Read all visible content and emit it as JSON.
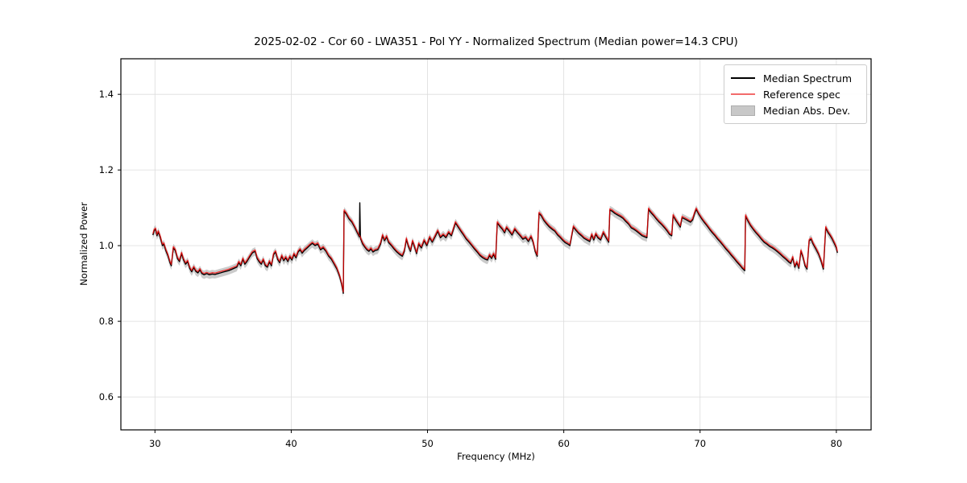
{
  "chart_data": {
    "type": "line",
    "title": "2025-02-02 - Cor 60 - LWA351 - Pol YY - Normalized Spectrum (Median power=14.3 CPU)",
    "xlabel": "Frequency (MHz)",
    "ylabel": "Normalized Power",
    "xlim": [
      27.5,
      82.55
    ],
    "ylim": [
      0.513,
      1.494
    ],
    "x_ticks": {
      "values": [
        30,
        40,
        50,
        60,
        70,
        80
      ],
      "labels": [
        "30",
        "40",
        "50",
        "60",
        "70",
        "80"
      ]
    },
    "y_ticks": {
      "values": [
        0.6,
        0.8,
        1.0,
        1.2,
        1.4
      ],
      "labels": [
        "0.6",
        "0.8",
        "1.0",
        "1.2",
        "1.4"
      ]
    },
    "grid": true,
    "grid_color": "#dcdcdc",
    "frame_color": "#000000",
    "legend": {
      "position": "upper right",
      "items": [
        {
          "label": "Median Spectrum",
          "swatch": "line",
          "color": "#000000"
        },
        {
          "label": "Reference spec",
          "swatch": "line",
          "color": "#f26b6b"
        },
        {
          "label": "Median Abs. Dev.",
          "swatch": "patch",
          "color": "#c8c8c8",
          "edge": "#aeaeae"
        }
      ]
    },
    "series": [
      {
        "name": "Median Spectrum",
        "color": "#000000",
        "points": [
          [
            29.85,
            1.028
          ],
          [
            29.95,
            1.04
          ],
          [
            30.05,
            1.043
          ],
          [
            30.15,
            1.026
          ],
          [
            30.25,
            1.036
          ],
          [
            30.4,
            1.021
          ],
          [
            30.55,
            1.0
          ],
          [
            30.65,
            1.004
          ],
          [
            30.8,
            0.987
          ],
          [
            30.95,
            0.974
          ],
          [
            31.1,
            0.955
          ],
          [
            31.2,
            0.947
          ],
          [
            31.35,
            0.994
          ],
          [
            31.5,
            0.987
          ],
          [
            31.65,
            0.966
          ],
          [
            31.8,
            0.958
          ],
          [
            31.95,
            0.979
          ],
          [
            32.1,
            0.962
          ],
          [
            32.25,
            0.951
          ],
          [
            32.4,
            0.958
          ],
          [
            32.55,
            0.94
          ],
          [
            32.7,
            0.931
          ],
          [
            32.85,
            0.942
          ],
          [
            33.0,
            0.932
          ],
          [
            33.15,
            0.928
          ],
          [
            33.3,
            0.936
          ],
          [
            33.45,
            0.926
          ],
          [
            33.6,
            0.923
          ],
          [
            33.8,
            0.926
          ],
          [
            34.0,
            0.923
          ],
          [
            34.2,
            0.925
          ],
          [
            34.4,
            0.924
          ],
          [
            34.6,
            0.926
          ],
          [
            34.8,
            0.928
          ],
          [
            35.0,
            0.93
          ],
          [
            35.2,
            0.932
          ],
          [
            35.4,
            0.934
          ],
          [
            35.6,
            0.937
          ],
          [
            35.8,
            0.94
          ],
          [
            36.0,
            0.943
          ],
          [
            36.15,
            0.955
          ],
          [
            36.3,
            0.947
          ],
          [
            36.45,
            0.964
          ],
          [
            36.6,
            0.951
          ],
          [
            36.75,
            0.958
          ],
          [
            36.95,
            0.97
          ],
          [
            37.15,
            0.981
          ],
          [
            37.35,
            0.985
          ],
          [
            37.5,
            0.966
          ],
          [
            37.65,
            0.957
          ],
          [
            37.8,
            0.951
          ],
          [
            37.95,
            0.962
          ],
          [
            38.1,
            0.947
          ],
          [
            38.25,
            0.943
          ],
          [
            38.4,
            0.957
          ],
          [
            38.55,
            0.947
          ],
          [
            38.7,
            0.976
          ],
          [
            38.85,
            0.983
          ],
          [
            39.0,
            0.964
          ],
          [
            39.15,
            0.955
          ],
          [
            39.3,
            0.972
          ],
          [
            39.45,
            0.96
          ],
          [
            39.6,
            0.968
          ],
          [
            39.75,
            0.958
          ],
          [
            39.9,
            0.97
          ],
          [
            40.05,
            0.962
          ],
          [
            40.2,
            0.977
          ],
          [
            40.35,
            0.968
          ],
          [
            40.5,
            0.983
          ],
          [
            40.65,
            0.989
          ],
          [
            40.8,
            0.98
          ],
          [
            40.95,
            0.987
          ],
          [
            41.15,
            0.993
          ],
          [
            41.35,
            1.0
          ],
          [
            41.55,
            1.006
          ],
          [
            41.75,
            1.0
          ],
          [
            41.95,
            1.004
          ],
          [
            42.15,
            0.989
          ],
          [
            42.35,
            0.994
          ],
          [
            42.55,
            0.985
          ],
          [
            42.75,
            0.972
          ],
          [
            42.95,
            0.964
          ],
          [
            43.15,
            0.951
          ],
          [
            43.35,
            0.938
          ],
          [
            43.55,
            0.919
          ],
          [
            43.7,
            0.898
          ],
          [
            43.82,
            0.874
          ],
          [
            43.88,
            1.091
          ],
          [
            44.05,
            1.083
          ],
          [
            44.25,
            1.07
          ],
          [
            44.45,
            1.062
          ],
          [
            44.65,
            1.049
          ],
          [
            44.85,
            1.034
          ],
          [
            45.0,
            1.023
          ],
          [
            45.03,
            1.113
          ],
          [
            45.08,
            1.019
          ],
          [
            45.25,
            1.004
          ],
          [
            45.4,
            0.996
          ],
          [
            45.55,
            0.989
          ],
          [
            45.7,
            0.985
          ],
          [
            45.85,
            0.991
          ],
          [
            46.0,
            0.983
          ],
          [
            46.15,
            0.987
          ],
          [
            46.35,
            0.989
          ],
          [
            46.55,
            1.004
          ],
          [
            46.7,
            1.026
          ],
          [
            46.85,
            1.013
          ],
          [
            47.0,
            1.023
          ],
          [
            47.15,
            1.008
          ],
          [
            47.35,
            1.0
          ],
          [
            47.55,
            0.991
          ],
          [
            47.75,
            0.983
          ],
          [
            47.95,
            0.977
          ],
          [
            48.15,
            0.972
          ],
          [
            48.3,
            0.985
          ],
          [
            48.45,
            1.017
          ],
          [
            48.6,
            0.998
          ],
          [
            48.75,
            0.985
          ],
          [
            48.9,
            1.011
          ],
          [
            49.05,
            0.996
          ],
          [
            49.2,
            0.979
          ],
          [
            49.35,
            1.004
          ],
          [
            49.55,
            0.994
          ],
          [
            49.75,
            1.013
          ],
          [
            49.95,
            1.0
          ],
          [
            50.15,
            1.021
          ],
          [
            50.35,
            1.009
          ],
          [
            50.55,
            1.023
          ],
          [
            50.75,
            1.038
          ],
          [
            50.95,
            1.021
          ],
          [
            51.15,
            1.028
          ],
          [
            51.35,
            1.021
          ],
          [
            51.55,
            1.034
          ],
          [
            51.75,
            1.026
          ],
          [
            51.9,
            1.043
          ],
          [
            52.05,
            1.06
          ],
          [
            52.25,
            1.049
          ],
          [
            52.45,
            1.038
          ],
          [
            52.65,
            1.028
          ],
          [
            52.85,
            1.017
          ],
          [
            53.05,
            1.009
          ],
          [
            53.25,
            1.0
          ],
          [
            53.45,
            0.991
          ],
          [
            53.65,
            0.983
          ],
          [
            53.85,
            0.974
          ],
          [
            54.05,
            0.968
          ],
          [
            54.25,
            0.964
          ],
          [
            54.4,
            0.962
          ],
          [
            54.55,
            0.974
          ],
          [
            54.7,
            0.966
          ],
          [
            54.85,
            0.977
          ],
          [
            55.0,
            0.964
          ],
          [
            55.12,
            1.06
          ],
          [
            55.3,
            1.051
          ],
          [
            55.5,
            1.043
          ],
          [
            55.65,
            1.034
          ],
          [
            55.8,
            1.047
          ],
          [
            56.0,
            1.038
          ],
          [
            56.2,
            1.028
          ],
          [
            56.4,
            1.043
          ],
          [
            56.6,
            1.034
          ],
          [
            56.8,
            1.026
          ],
          [
            57.0,
            1.017
          ],
          [
            57.2,
            1.021
          ],
          [
            57.4,
            1.011
          ],
          [
            57.6,
            1.023
          ],
          [
            57.75,
            1.009
          ],
          [
            57.9,
            0.985
          ],
          [
            58.05,
            0.972
          ],
          [
            58.18,
            1.085
          ],
          [
            58.35,
            1.079
          ],
          [
            58.55,
            1.066
          ],
          [
            58.75,
            1.057
          ],
          [
            58.95,
            1.049
          ],
          [
            59.15,
            1.043
          ],
          [
            59.35,
            1.038
          ],
          [
            59.55,
            1.028
          ],
          [
            59.75,
            1.021
          ],
          [
            59.95,
            1.013
          ],
          [
            60.1,
            1.008
          ],
          [
            60.3,
            1.004
          ],
          [
            60.45,
            1.0
          ],
          [
            60.7,
            1.049
          ],
          [
            60.9,
            1.04
          ],
          [
            61.1,
            1.032
          ],
          [
            61.3,
            1.026
          ],
          [
            61.5,
            1.019
          ],
          [
            61.7,
            1.015
          ],
          [
            61.9,
            1.011
          ],
          [
            62.05,
            1.028
          ],
          [
            62.2,
            1.015
          ],
          [
            62.35,
            1.03
          ],
          [
            62.5,
            1.021
          ],
          [
            62.7,
            1.015
          ],
          [
            62.9,
            1.034
          ],
          [
            63.1,
            1.021
          ],
          [
            63.3,
            1.009
          ],
          [
            63.38,
            1.094
          ],
          [
            63.55,
            1.091
          ],
          [
            63.75,
            1.085
          ],
          [
            63.95,
            1.081
          ],
          [
            64.15,
            1.077
          ],
          [
            64.35,
            1.072
          ],
          [
            64.55,
            1.064
          ],
          [
            64.75,
            1.057
          ],
          [
            64.95,
            1.047
          ],
          [
            65.15,
            1.043
          ],
          [
            65.35,
            1.038
          ],
          [
            65.55,
            1.032
          ],
          [
            65.75,
            1.026
          ],
          [
            65.95,
            1.023
          ],
          [
            66.1,
            1.021
          ],
          [
            66.22,
            1.096
          ],
          [
            66.4,
            1.087
          ],
          [
            66.6,
            1.079
          ],
          [
            66.8,
            1.07
          ],
          [
            67.0,
            1.062
          ],
          [
            67.2,
            1.055
          ],
          [
            67.4,
            1.047
          ],
          [
            67.6,
            1.038
          ],
          [
            67.75,
            1.03
          ],
          [
            67.92,
            1.026
          ],
          [
            68.02,
            1.079
          ],
          [
            68.2,
            1.068
          ],
          [
            68.4,
            1.057
          ],
          [
            68.55,
            1.049
          ],
          [
            68.68,
            1.074
          ],
          [
            68.9,
            1.07
          ],
          [
            69.1,
            1.066
          ],
          [
            69.3,
            1.062
          ],
          [
            69.45,
            1.068
          ],
          [
            69.6,
            1.085
          ],
          [
            69.72,
            1.096
          ],
          [
            69.9,
            1.083
          ],
          [
            70.1,
            1.072
          ],
          [
            70.3,
            1.062
          ],
          [
            70.5,
            1.053
          ],
          [
            70.7,
            1.043
          ],
          [
            70.9,
            1.034
          ],
          [
            71.1,
            1.026
          ],
          [
            71.3,
            1.017
          ],
          [
            71.5,
            1.009
          ],
          [
            71.7,
            1.0
          ],
          [
            71.9,
            0.991
          ],
          [
            72.1,
            0.983
          ],
          [
            72.3,
            0.974
          ],
          [
            72.5,
            0.966
          ],
          [
            72.7,
            0.957
          ],
          [
            72.9,
            0.949
          ],
          [
            73.1,
            0.94
          ],
          [
            73.28,
            0.934
          ],
          [
            73.34,
            1.078
          ],
          [
            73.5,
            1.066
          ],
          [
            73.7,
            1.053
          ],
          [
            73.9,
            1.043
          ],
          [
            74.1,
            1.034
          ],
          [
            74.3,
            1.026
          ],
          [
            74.5,
            1.017
          ],
          [
            74.7,
            1.009
          ],
          [
            74.9,
            1.004
          ],
          [
            75.1,
            0.998
          ],
          [
            75.3,
            0.994
          ],
          [
            75.5,
            0.989
          ],
          [
            75.7,
            0.983
          ],
          [
            75.9,
            0.977
          ],
          [
            76.1,
            0.97
          ],
          [
            76.3,
            0.964
          ],
          [
            76.5,
            0.957
          ],
          [
            76.65,
            0.953
          ],
          [
            76.8,
            0.968
          ],
          [
            76.95,
            0.943
          ],
          [
            77.1,
            0.955
          ],
          [
            77.25,
            0.94
          ],
          [
            77.4,
            0.985
          ],
          [
            77.55,
            0.97
          ],
          [
            77.7,
            0.947
          ],
          [
            77.85,
            0.938
          ],
          [
            78.0,
            1.013
          ],
          [
            78.15,
            1.017
          ],
          [
            78.3,
            1.004
          ],
          [
            78.5,
            0.991
          ],
          [
            78.7,
            0.977
          ],
          [
            78.9,
            0.957
          ],
          [
            79.05,
            0.938
          ],
          [
            79.22,
            1.047
          ],
          [
            79.4,
            1.034
          ],
          [
            79.55,
            1.026
          ],
          [
            79.7,
            1.017
          ],
          [
            79.85,
            1.006
          ],
          [
            80.0,
            0.994
          ],
          [
            80.08,
            0.981
          ]
        ]
      },
      {
        "name": "Reference spec",
        "color": "rgba(255,0,0,0.75)",
        "derived": "median_plus_offset",
        "value_offset": 0.0035,
        "overrides": [
          [
            45.03,
            1.026
          ]
        ]
      },
      {
        "name": "Median Abs. Dev.",
        "type": "band",
        "halfwidth": 0.011,
        "color": "rgba(175,175,175,0.65)"
      }
    ]
  }
}
